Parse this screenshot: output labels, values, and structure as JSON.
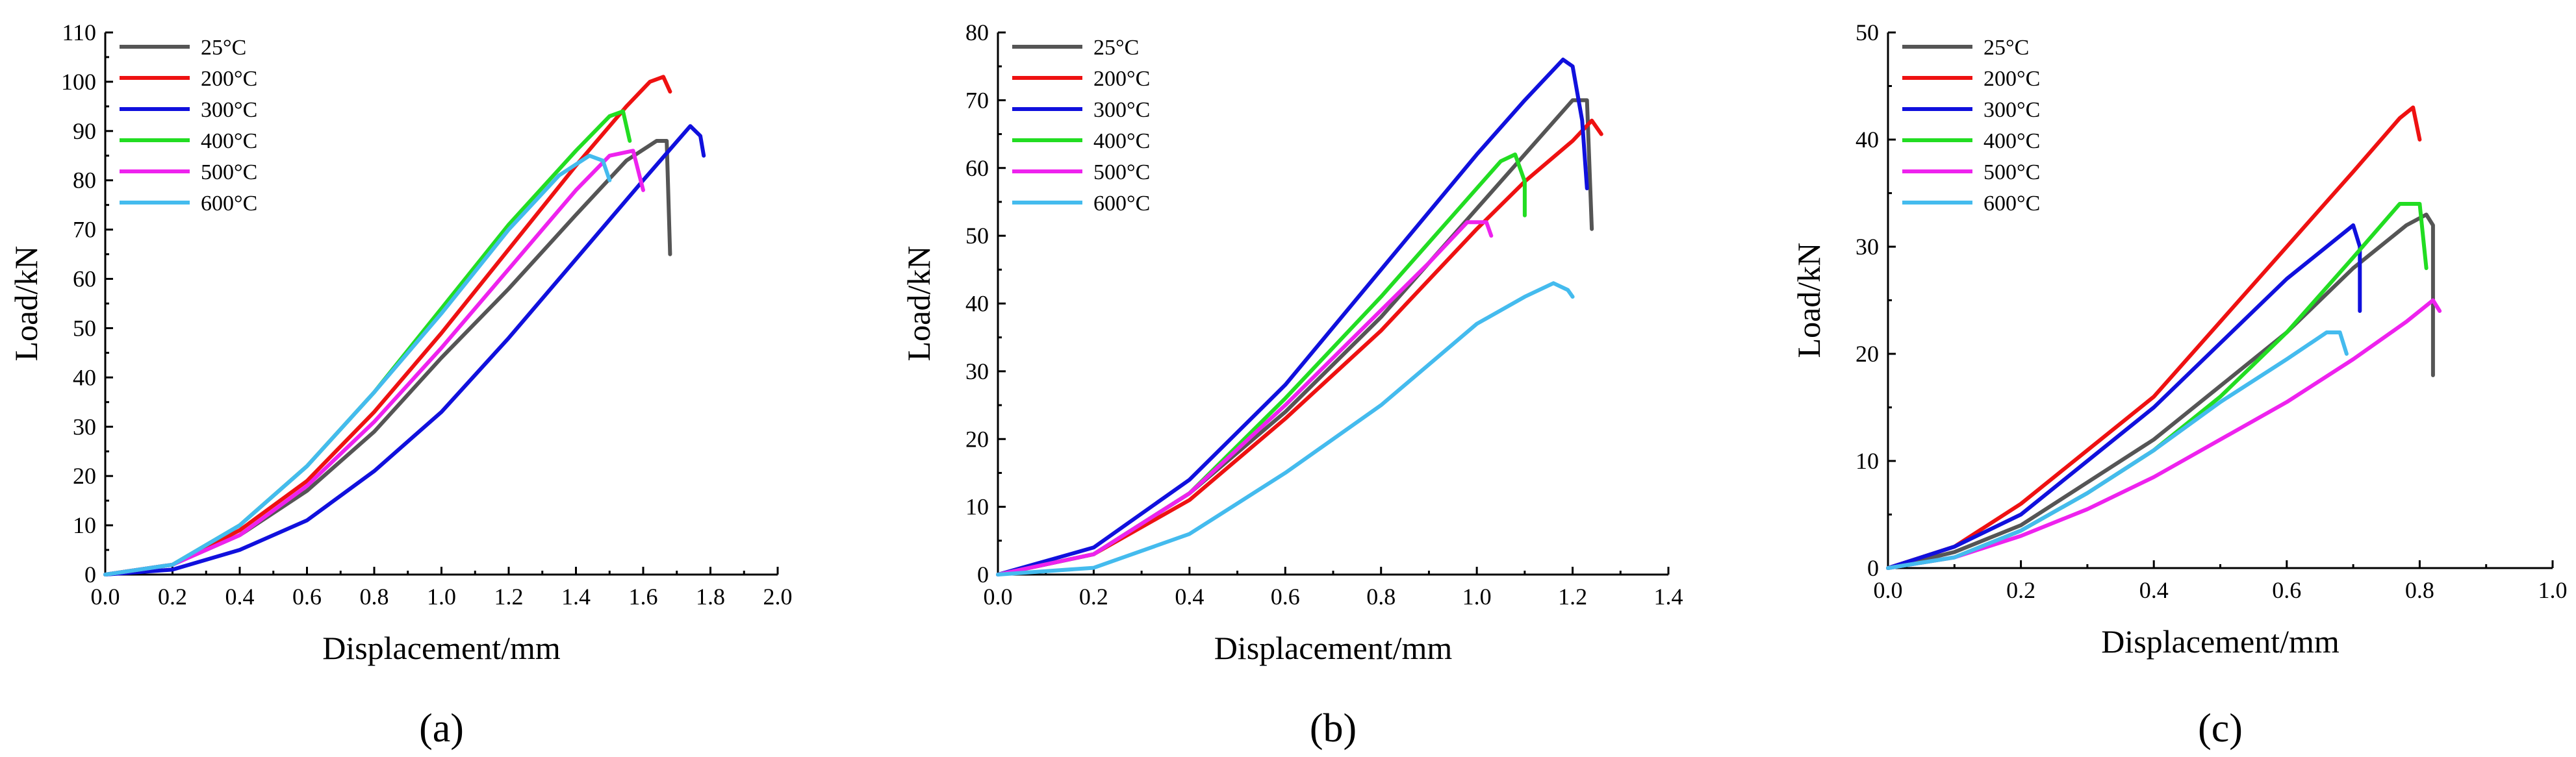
{
  "colors": {
    "25°C": "#555555",
    "200°C": "#ee1111",
    "300°C": "#1010dd",
    "400°C": "#22dd22",
    "500°C": "#ee22ee",
    "600°C": "#44bbee"
  },
  "chart_data": [
    {
      "type": "line",
      "panel_label": "(a)",
      "xlabel": "Displacement/mm",
      "ylabel": "Load/kN",
      "xlim": [
        0,
        2.0
      ],
      "ylim": [
        0,
        110
      ],
      "xticks": [
        "0.0",
        "0.2",
        "0.4",
        "0.6",
        "0.8",
        "1.0",
        "1.2",
        "1.4",
        "1.6",
        "1.8",
        "2.0"
      ],
      "yticks": [
        "0",
        "10",
        "20",
        "30",
        "40",
        "50",
        "60",
        "70",
        "80",
        "90",
        "100",
        "110"
      ],
      "series": [
        {
          "name": "25°C",
          "x": [
            0,
            0.2,
            0.4,
            0.6,
            0.8,
            1.0,
            1.2,
            1.4,
            1.55,
            1.64,
            1.67,
            1.68
          ],
          "y": [
            0,
            2,
            8,
            17,
            29,
            44,
            58,
            73,
            84,
            88,
            88,
            65
          ]
        },
        {
          "name": "200°C",
          "x": [
            0,
            0.2,
            0.4,
            0.6,
            0.8,
            1.0,
            1.2,
            1.4,
            1.55,
            1.62,
            1.66,
            1.68
          ],
          "y": [
            0,
            2,
            9,
            19,
            33,
            49,
            66,
            83,
            95,
            100,
            101,
            98
          ]
        },
        {
          "name": "300°C",
          "x": [
            0,
            0.2,
            0.4,
            0.6,
            0.8,
            1.0,
            1.2,
            1.4,
            1.6,
            1.74,
            1.77,
            1.78
          ],
          "y": [
            0,
            1,
            5,
            11,
            21,
            33,
            48,
            64,
            80,
            91,
            89,
            85
          ]
        },
        {
          "name": "400°C",
          "x": [
            0,
            0.2,
            0.4,
            0.6,
            0.8,
            1.0,
            1.2,
            1.4,
            1.5,
            1.54,
            1.56
          ],
          "y": [
            0,
            2,
            10,
            22,
            37,
            54,
            71,
            86,
            93,
            94,
            88
          ]
        },
        {
          "name": "500°C",
          "x": [
            0,
            0.2,
            0.4,
            0.6,
            0.8,
            1.0,
            1.2,
            1.4,
            1.5,
            1.57,
            1.6
          ],
          "y": [
            0,
            2,
            8,
            18,
            31,
            46,
            62,
            78,
            85,
            86,
            78
          ]
        },
        {
          "name": "600°C",
          "x": [
            0,
            0.2,
            0.4,
            0.6,
            0.8,
            1.0,
            1.2,
            1.35,
            1.44,
            1.48,
            1.5
          ],
          "y": [
            0,
            2,
            10,
            22,
            37,
            53,
            70,
            81,
            85,
            84,
            80
          ]
        }
      ]
    },
    {
      "type": "line",
      "panel_label": "(b)",
      "xlabel": "Displacement/mm",
      "ylabel": "Load/kN",
      "xlim": [
        0,
        1.4
      ],
      "ylim": [
        0,
        80
      ],
      "xticks": [
        "0.0",
        "0.2",
        "0.4",
        "0.6",
        "0.8",
        "1.0",
        "1.2",
        "1.4"
      ],
      "yticks": [
        "0",
        "10",
        "20",
        "30",
        "40",
        "50",
        "60",
        "70",
        "80"
      ],
      "series": [
        {
          "name": "25°C",
          "x": [
            0,
            0.2,
            0.4,
            0.6,
            0.8,
            1.0,
            1.1,
            1.2,
            1.23,
            1.24
          ],
          "y": [
            0,
            3,
            12,
            24,
            38,
            54,
            62,
            70,
            70,
            51
          ]
        },
        {
          "name": "200°C",
          "x": [
            0,
            0.2,
            0.4,
            0.6,
            0.8,
            1.0,
            1.1,
            1.2,
            1.24,
            1.26
          ],
          "y": [
            0,
            3,
            11,
            23,
            36,
            51,
            58,
            64,
            67,
            65
          ]
        },
        {
          "name": "300°C",
          "x": [
            0,
            0.2,
            0.4,
            0.6,
            0.8,
            1.0,
            1.1,
            1.18,
            1.2,
            1.22,
            1.23
          ],
          "y": [
            0,
            4,
            14,
            28,
            45,
            62,
            70,
            76,
            75,
            67,
            57
          ]
        },
        {
          "name": "400°C",
          "x": [
            0,
            0.2,
            0.4,
            0.6,
            0.8,
            0.95,
            1.05,
            1.08,
            1.1,
            1.1
          ],
          "y": [
            0,
            3,
            12,
            26,
            41,
            53,
            61,
            62,
            58,
            53
          ]
        },
        {
          "name": "500°C",
          "x": [
            0,
            0.2,
            0.4,
            0.6,
            0.8,
            0.9,
            0.98,
            1.02,
            1.03
          ],
          "y": [
            0,
            3,
            12,
            25,
            39,
            46,
            52,
            52,
            50
          ]
        },
        {
          "name": "600°C",
          "x": [
            0,
            0.2,
            0.4,
            0.6,
            0.8,
            1.0,
            1.1,
            1.16,
            1.19,
            1.2
          ],
          "y": [
            0,
            1,
            6,
            15,
            25,
            37,
            41,
            43,
            42,
            41
          ]
        }
      ]
    },
    {
      "type": "line",
      "panel_label": "(c)",
      "xlabel": "Displacement/mm",
      "ylabel": "Load/kN",
      "xlim": [
        0,
        1.0
      ],
      "ylim": [
        0,
        50
      ],
      "xticks": [
        "0.0",
        "0.2",
        "0.4",
        "0.6",
        "0.8",
        "1.0"
      ],
      "yticks": [
        "0",
        "10",
        "20",
        "30",
        "40",
        "50"
      ],
      "series": [
        {
          "name": "25°C",
          "x": [
            0,
            0.1,
            0.2,
            0.3,
            0.4,
            0.5,
            0.6,
            0.7,
            0.78,
            0.81,
            0.82,
            0.82
          ],
          "y": [
            0,
            1.5,
            4,
            8,
            12,
            17,
            22,
            28,
            32,
            33,
            32,
            18
          ]
        },
        {
          "name": "200°C",
          "x": [
            0,
            0.1,
            0.2,
            0.3,
            0.4,
            0.5,
            0.6,
            0.7,
            0.77,
            0.79,
            0.8
          ],
          "y": [
            0,
            2,
            6,
            11,
            16,
            23,
            30,
            37,
            42,
            43,
            40
          ]
        },
        {
          "name": "300°C",
          "x": [
            0,
            0.1,
            0.2,
            0.3,
            0.4,
            0.5,
            0.6,
            0.66,
            0.7,
            0.71,
            0.71
          ],
          "y": [
            0,
            2,
            5,
            10,
            15,
            21,
            27,
            30,
            32,
            30,
            24
          ]
        },
        {
          "name": "400°C",
          "x": [
            0,
            0.1,
            0.2,
            0.3,
            0.4,
            0.5,
            0.6,
            0.7,
            0.77,
            0.8,
            0.81
          ],
          "y": [
            0,
            1,
            3.5,
            7,
            11,
            16,
            22,
            29,
            34,
            34,
            28
          ]
        },
        {
          "name": "500°C",
          "x": [
            0,
            0.1,
            0.2,
            0.3,
            0.4,
            0.5,
            0.6,
            0.7,
            0.78,
            0.82,
            0.83
          ],
          "y": [
            0,
            1,
            3,
            5.5,
            8.5,
            12,
            15.5,
            19.5,
            23,
            25,
            24
          ]
        },
        {
          "name": "600°C",
          "x": [
            0,
            0.1,
            0.2,
            0.3,
            0.4,
            0.5,
            0.6,
            0.66,
            0.68,
            0.69
          ],
          "y": [
            0,
            1,
            3.5,
            7,
            11,
            15.5,
            19.5,
            22,
            22,
            20
          ]
        }
      ]
    }
  ]
}
